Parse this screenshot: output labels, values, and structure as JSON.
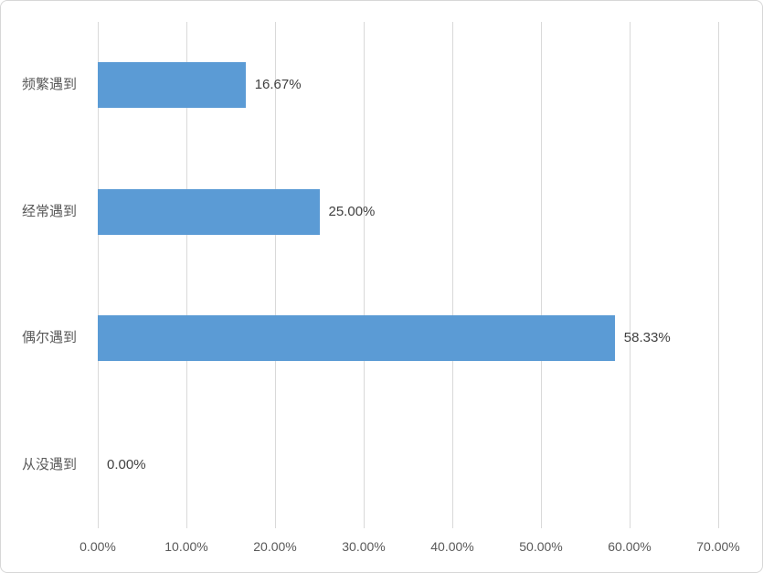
{
  "chart_data": {
    "type": "bar",
    "orientation": "horizontal",
    "title": "",
    "categories": [
      "频繁遇到",
      "经常遇到",
      "偶尔遇到",
      "从没遇到"
    ],
    "values": [
      16.67,
      25.0,
      58.33,
      0.0
    ],
    "data_labels": [
      "16.67%",
      "25.00%",
      "58.33%",
      "0.00%"
    ],
    "tick_values": [
      0,
      10,
      20,
      30,
      40,
      50,
      60,
      70
    ],
    "tick_labels": [
      "0.00%",
      "10.00%",
      "20.00%",
      "30.00%",
      "40.00%",
      "50.00%",
      "60.00%",
      "70.00%"
    ],
    "xlim": [
      0,
      70
    ],
    "grid": "vertical-only",
    "legend": "none",
    "colors": {
      "bar": "#5b9bd5",
      "gridline": "#d9d9d9",
      "axis_text": "#595959",
      "data_label": "#404040",
      "frame_border": "#d7d7d7",
      "background": "#ffffff"
    }
  }
}
